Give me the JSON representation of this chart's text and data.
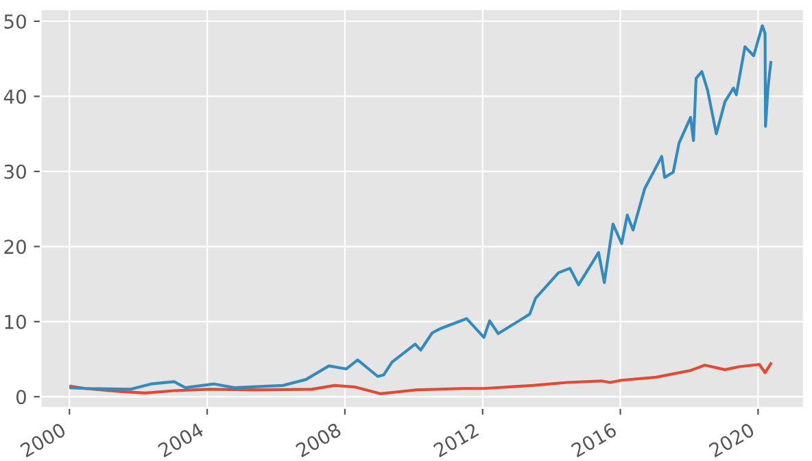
{
  "chart_data": {
    "type": "line",
    "grid": true,
    "legend": false,
    "marker": "none",
    "line_style": "solid",
    "xlim": [
      "1999-03-01",
      "2021-05-01"
    ],
    "ylim": [
      -1.5,
      51.6
    ],
    "xticks": [
      {
        "value": "2000-01-01",
        "label": "2000"
      },
      {
        "value": "2004-01-01",
        "label": "2004"
      },
      {
        "value": "2008-01-01",
        "label": "2008"
      },
      {
        "value": "2012-01-01",
        "label": "2012"
      },
      {
        "value": "2016-01-01",
        "label": "2016"
      },
      {
        "value": "2020-01-01",
        "label": "2020"
      }
    ],
    "yticks": [
      0,
      10,
      20,
      30,
      40,
      50
    ],
    "series": [
      {
        "color": "#e24a33",
        "x": [
          "2000-01",
          "2000-06",
          "2001-06",
          "2002-03",
          "2003-01",
          "2004-01",
          "2005-06",
          "2007-01",
          "2007-09",
          "2008-04",
          "2009-01",
          "2010-01",
          "2011-06",
          "2012-01",
          "2013-06",
          "2014-06",
          "2015-06",
          "2015-09",
          "2016-01",
          "2017-01",
          "2018-01",
          "2018-06",
          "2019-01",
          "2019-06",
          "2020-01",
          "2020-03",
          "2020-05"
        ],
        "values": [
          1.4,
          1.1,
          0.7,
          0.5,
          0.8,
          1.0,
          0.9,
          1.0,
          1.5,
          1.3,
          0.4,
          0.9,
          1.1,
          1.1,
          1.5,
          1.9,
          2.1,
          1.9,
          2.2,
          2.6,
          3.5,
          4.2,
          3.6,
          4.0,
          4.3,
          3.2,
          4.4
        ]
      },
      {
        "color": "#348abd",
        "x": [
          "2000-01",
          "2000-06",
          "2001-10",
          "2002-05",
          "2003-01",
          "2003-05",
          "2004-03",
          "2004-10",
          "2006-03",
          "2006-11",
          "2007-07",
          "2008-01",
          "2008-05",
          "2008-12",
          "2009-02",
          "2009-05",
          "2010-01",
          "2010-03",
          "2010-07",
          "2010-10",
          "2011-07",
          "2012-01",
          "2012-03",
          "2012-06",
          "2013-05",
          "2013-07",
          "2014-03",
          "2014-07",
          "2014-10",
          "2015-05",
          "2015-07",
          "2015-10",
          "2016-01",
          "2016-03",
          "2016-05",
          "2016-09",
          "2017-03",
          "2017-04",
          "2017-07",
          "2017-09",
          "2018-01",
          "2018-02",
          "2018-03",
          "2018-05",
          "2018-07",
          "2018-10",
          "2019-01",
          "2019-04",
          "2019-05",
          "2019-08",
          "2019-11",
          "2020-02",
          "2020-03",
          "2020-03-20",
          "2020-04",
          "2020-05"
        ],
        "values": [
          1.2,
          1.1,
          1.0,
          1.7,
          2.0,
          1.2,
          1.7,
          1.2,
          1.5,
          2.3,
          4.1,
          3.7,
          4.9,
          2.7,
          2.9,
          4.6,
          7.0,
          6.2,
          8.5,
          9.1,
          10.4,
          7.9,
          10.1,
          8.4,
          11.0,
          13.1,
          16.5,
          17.1,
          14.9,
          19.2,
          15.2,
          23.0,
          20.4,
          24.2,
          22.2,
          27.7,
          32.0,
          29.2,
          29.9,
          33.8,
          37.2,
          34.1,
          42.4,
          43.3,
          40.8,
          35.0,
          39.3,
          41.1,
          40.2,
          46.6,
          45.4,
          49.4,
          48.4,
          36.0,
          41.1,
          44.5
        ]
      }
    ]
  }
}
